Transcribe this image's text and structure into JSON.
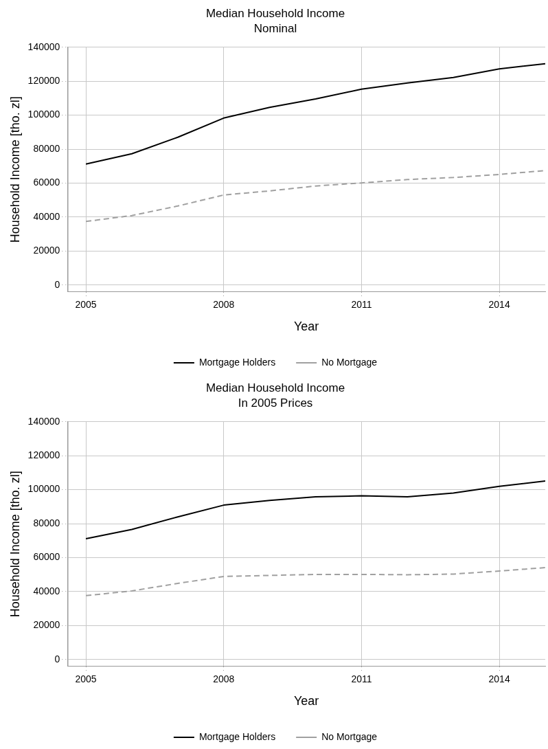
{
  "chart_data": [
    {
      "type": "line",
      "title": "Median Household Income",
      "subtitle": "Nominal",
      "xlabel": "Year",
      "ylabel": "Household Income [tho. zl]",
      "x": [
        2005,
        2006,
        2007,
        2008,
        2009,
        2010,
        2011,
        2012,
        2013,
        2014,
        2015
      ],
      "series": [
        {
          "name": "Mortgage Holders",
          "color": "#000000",
          "line_style": "solid",
          "values": [
            71200,
            77300,
            87000,
            98300,
            104600,
            109600,
            115300,
            119000,
            122200,
            127300,
            130300
          ]
        },
        {
          "name": "No Mortgage",
          "color": "#a0a0a0",
          "line_style": "dashed",
          "values": [
            37400,
            40900,
            46500,
            53000,
            55400,
            58300,
            60100,
            62100,
            63300,
            65100,
            67400
          ]
        }
      ],
      "xlim": [
        2004.6,
        2015
      ],
      "xticks": [
        2005,
        2008,
        2011,
        2014
      ],
      "ylim": [
        -4000,
        140000
      ],
      "yticks": [
        0,
        20000,
        40000,
        60000,
        80000,
        100000,
        120000,
        140000
      ],
      "grid": true,
      "legend": "bottom",
      "marker": "none"
    },
    {
      "type": "line",
      "title": "Median Household Income",
      "subtitle": "In 2005 Prices",
      "xlabel": "Year",
      "ylabel": "Household Income [tho. zl]",
      "x": [
        2005,
        2006,
        2007,
        2008,
        2009,
        2010,
        2011,
        2012,
        2013,
        2014,
        2015
      ],
      "series": [
        {
          "name": "Mortgage Holders",
          "color": "#000000",
          "line_style": "solid",
          "values": [
            71100,
            76600,
            84000,
            90900,
            93700,
            95800,
            96400,
            95800,
            98000,
            102000,
            105100
          ]
        },
        {
          "name": "No Mortgage",
          "color": "#a0a0a0",
          "line_style": "dashed",
          "values": [
            37600,
            40400,
            44800,
            48900,
            49500,
            50100,
            50100,
            49900,
            50300,
            52100,
            54100
          ]
        }
      ],
      "xlim": [
        2004.6,
        2015
      ],
      "xticks": [
        2005,
        2008,
        2011,
        2014
      ],
      "ylim": [
        -4000,
        140000
      ],
      "yticks": [
        0,
        20000,
        40000,
        60000,
        80000,
        100000,
        120000,
        140000
      ],
      "grid": true,
      "legend": "bottom",
      "marker": "none"
    }
  ]
}
